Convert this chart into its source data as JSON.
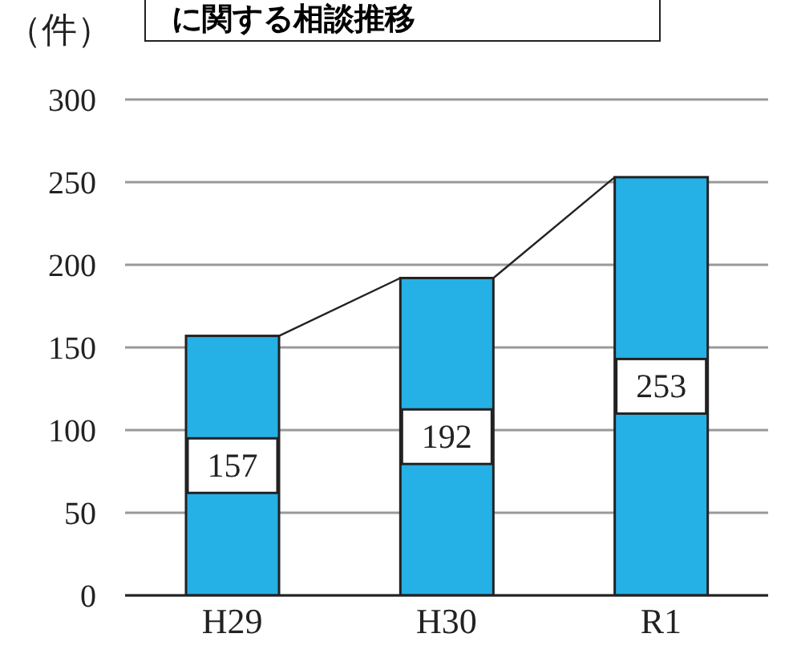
{
  "chart_data": {
    "type": "bar",
    "title": "に関する相談推移",
    "ylabel": "（件）",
    "categories": [
      "H29",
      "H30",
      "R1"
    ],
    "series": [
      {
        "color": "#25b0e6",
        "values": [
          157,
          192,
          253
        ]
      }
    ],
    "ylim": [
      0,
      300
    ],
    "yticks": [
      0,
      50,
      100,
      150,
      200,
      250,
      300
    ],
    "grid": "y",
    "data_labels": true
  }
}
